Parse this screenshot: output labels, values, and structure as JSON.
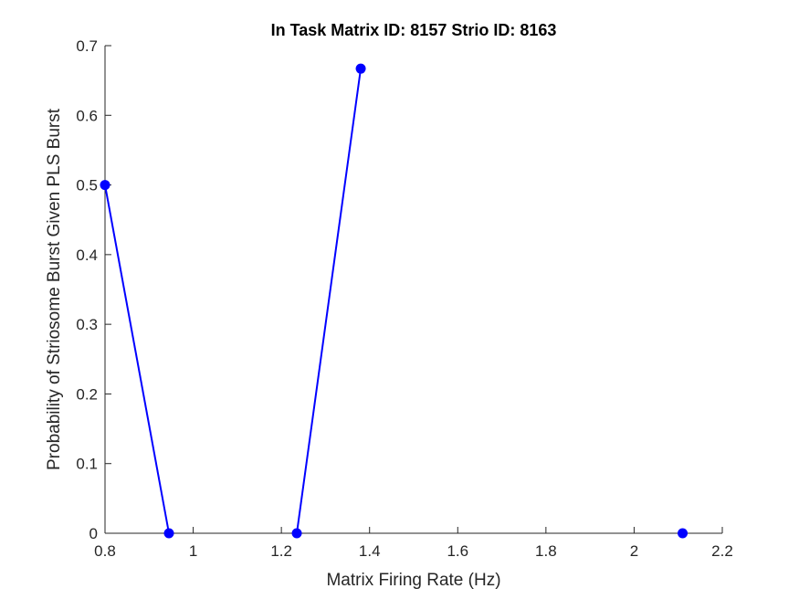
{
  "chart_data": {
    "type": "line",
    "title": "In Task Matrix ID: 8157 Strio ID: 8163",
    "xlabel": "Matrix Firing Rate (Hz)",
    "ylabel": "Probability of Striosome Burst Given PLS Burst",
    "xlim": [
      0.8,
      2.2
    ],
    "ylim": [
      0,
      0.7
    ],
    "xticks": [
      0.8,
      1,
      1.2,
      1.4,
      1.6,
      1.8,
      2,
      2.2
    ],
    "xtick_labels": [
      "0.8",
      "1",
      "1.2",
      "1.4",
      "1.6",
      "1.8",
      "2",
      "2.2"
    ],
    "yticks": [
      0,
      0.1,
      0.2,
      0.3,
      0.4,
      0.5,
      0.6,
      0.7
    ],
    "ytick_labels": [
      "0",
      "0.1",
      "0.2",
      "0.3",
      "0.4",
      "0.5",
      "0.6",
      "0.7"
    ],
    "grid": false,
    "series": [
      {
        "color": "#0000ff",
        "x": [
          0.8,
          0.945,
          1.235,
          1.38,
          2.11
        ],
        "y": [
          0.5,
          0,
          0,
          0.667,
          0
        ],
        "segments": [
          [
            0,
            1
          ],
          [
            2,
            3
          ]
        ]
      }
    ]
  }
}
